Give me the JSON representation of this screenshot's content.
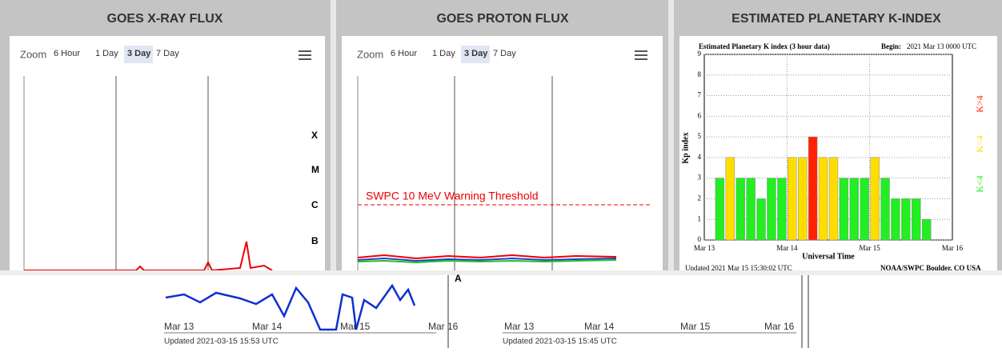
{
  "panels": [
    {
      "title": "GOES X-RAY FLUX",
      "zoom_label": "Zoom",
      "zoom_options": [
        "6 Hour",
        "1 Day",
        "3 Day",
        "7 Day"
      ],
      "flare_classes": [
        "X",
        "M",
        "C",
        "B",
        "A"
      ]
    },
    {
      "title": "GOES PROTON FLUX",
      "zoom_label": "Zoom",
      "zoom_options": [
        "6 Hour",
        "1 Day",
        "3 Day",
        "7 Day"
      ],
      "threshold_label": "SWPC 10 MeV Warning Threshold"
    },
    {
      "title": "ESTIMATED PLANETARY K-INDEX",
      "chart_title": "Estimated Planetary K index (3 hour data)",
      "begin_label": "Begin:",
      "begin_value": "2021 Mar 13 0000 UTC",
      "y_label": "Kp index",
      "x_label": "Universal Time",
      "categories": [
        "Mar 13",
        "Mar 14",
        "Mar 15",
        "Mar 16"
      ],
      "ylim": [
        0,
        9
      ],
      "yticks": [
        0,
        1,
        2,
        3,
        4,
        5,
        6,
        7,
        8,
        9
      ],
      "kp": [
        null,
        3,
        4,
        3,
        3,
        2,
        3,
        3,
        4,
        4,
        5,
        4,
        4,
        3,
        3,
        3,
        4,
        3,
        2,
        2,
        2,
        1,
        null,
        null
      ],
      "bar_colors": [
        null,
        "#22ee22",
        "#ffdd00",
        "#22ee22",
        "#22ee22",
        "#22ee22",
        "#22ee22",
        "#22ee22",
        "#ffdd00",
        "#ffdd00",
        "#ff2200",
        "#ffdd00",
        "#ffdd00",
        "#22ee22",
        "#22ee22",
        "#22ee22",
        "#ffdd00",
        "#22ee22",
        "#22ee22",
        "#22ee22",
        "#22ee22",
        "#22ee22",
        null,
        null
      ],
      "legend": [
        {
          "label": "K<4",
          "color": "#22ee22"
        },
        {
          "label": "K=4",
          "color": "#ffdd00"
        },
        {
          "label": "K>4",
          "color": "#ff2200"
        }
      ],
      "updated": "Updated 2021 Mar 15 15:30:02 UTC",
      "credit": "NOAA/SWPC Boulder, CO USA"
    }
  ],
  "fragments": [
    {
      "dates": [
        "Mar 13",
        "Mar 14",
        "Mar 15",
        "Mar 16"
      ],
      "updated": "Updated 2021-03-15 15:53 UTC"
    },
    {
      "dates": [
        "Mar 13",
        "Mar 14",
        "Mar 15",
        "Mar 16"
      ],
      "updated": "Updated 2021-03-15 15:45 UTC"
    }
  ]
}
